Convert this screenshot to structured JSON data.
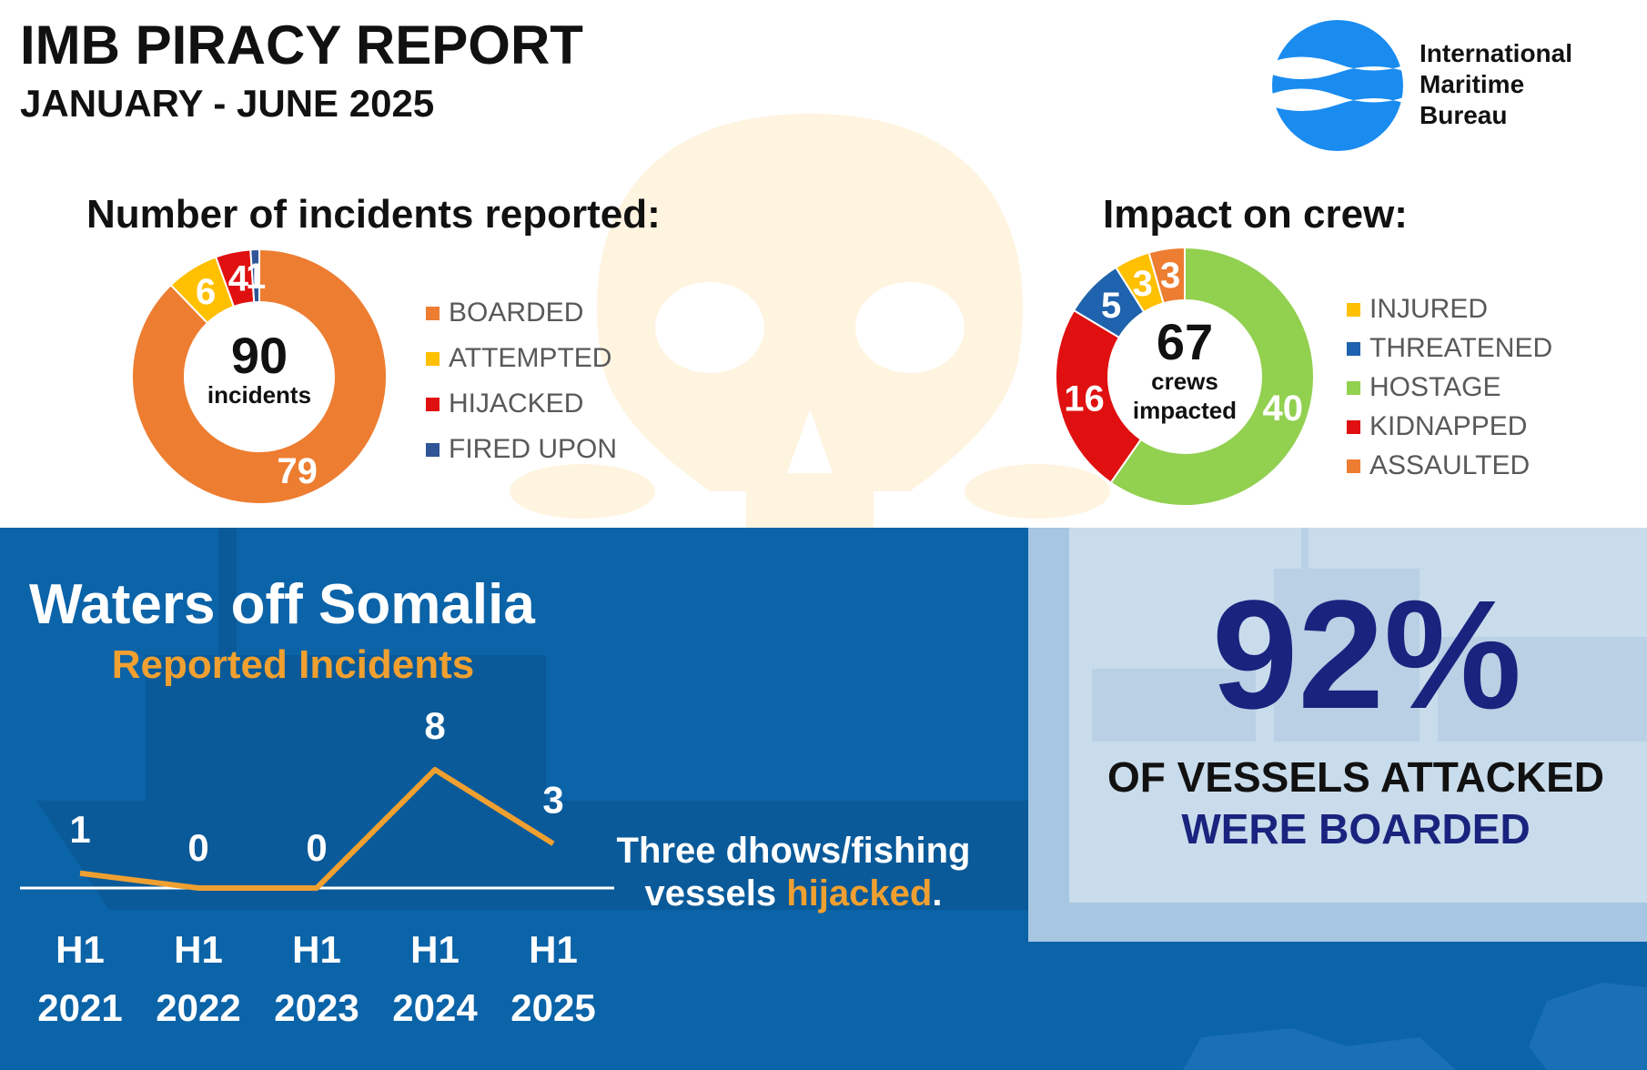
{
  "header": {
    "title": "IMB PIRACY REPORT",
    "subtitle": "JANUARY - JUNE 2025"
  },
  "logo": {
    "lines": [
      "International",
      "Maritime",
      "Bureau"
    ],
    "color": "#1a8cf0"
  },
  "colors": {
    "orange": "#ed7d31",
    "yellow": "#ffc000",
    "red": "#e01010",
    "navy": "#2f5597",
    "blue": "#1f62ad",
    "green": "#92d050",
    "panel_blue": "#0b63a8",
    "dark_navy": "#1a237e",
    "line_orange": "#f0a030",
    "light_panel": "#c9dcec"
  },
  "chart_data": [
    {
      "type": "pie",
      "variant": "donut",
      "title": "Number of incidents reported:",
      "center_value": "90",
      "center_label": "incidents",
      "slices": [
        {
          "label": "BOARDED",
          "value": 79,
          "color": "#ed7d31"
        },
        {
          "label": "ATTEMPTED",
          "value": 6,
          "color": "#ffc000"
        },
        {
          "label": "HIJACKED",
          "value": 4,
          "color": "#e01010"
        },
        {
          "label": "FIRED UPON",
          "value": 1,
          "color": "#2f5597"
        }
      ],
      "legend_position": "right"
    },
    {
      "type": "pie",
      "variant": "donut",
      "title": "Impact on crew:",
      "center_value": "67",
      "center_label_lines": [
        "crews",
        "impacted"
      ],
      "slices": [
        {
          "label": "HOSTAGE",
          "value": 40,
          "color": "#92d050"
        },
        {
          "label": "KIDNAPPED",
          "value": 16,
          "color": "#e01010"
        },
        {
          "label": "THREATENED",
          "value": 5,
          "color": "#1f62ad"
        },
        {
          "label": "INJURED",
          "value": 3,
          "color": "#ffc000"
        },
        {
          "label": "ASSAULTED",
          "value": 3,
          "color": "#ed7d31"
        }
      ],
      "legend": [
        "INJURED",
        "THREATENED",
        "HOSTAGE",
        "KIDNAPPED",
        "ASSAULTED"
      ],
      "legend_position": "right"
    },
    {
      "type": "line",
      "title": "Waters off Somalia",
      "subtitle": "Reported Incidents",
      "categories": [
        [
          "H1",
          "2021"
        ],
        [
          "H1",
          "2022"
        ],
        [
          "H1",
          "2023"
        ],
        [
          "H1",
          "2024"
        ],
        [
          "H1",
          "2025"
        ]
      ],
      "values": [
        1,
        0,
        0,
        8,
        3
      ],
      "ylim": [
        0,
        8
      ],
      "grid": false,
      "annotation": {
        "prefix": "Three dhows/fishing",
        "line2": "vessels",
        "highlight": "hijacked",
        "suffix": "."
      }
    }
  ],
  "stat": {
    "value": "92%",
    "line1": "OF VESSELS ATTACKED",
    "line2": "WERE BOARDED"
  }
}
